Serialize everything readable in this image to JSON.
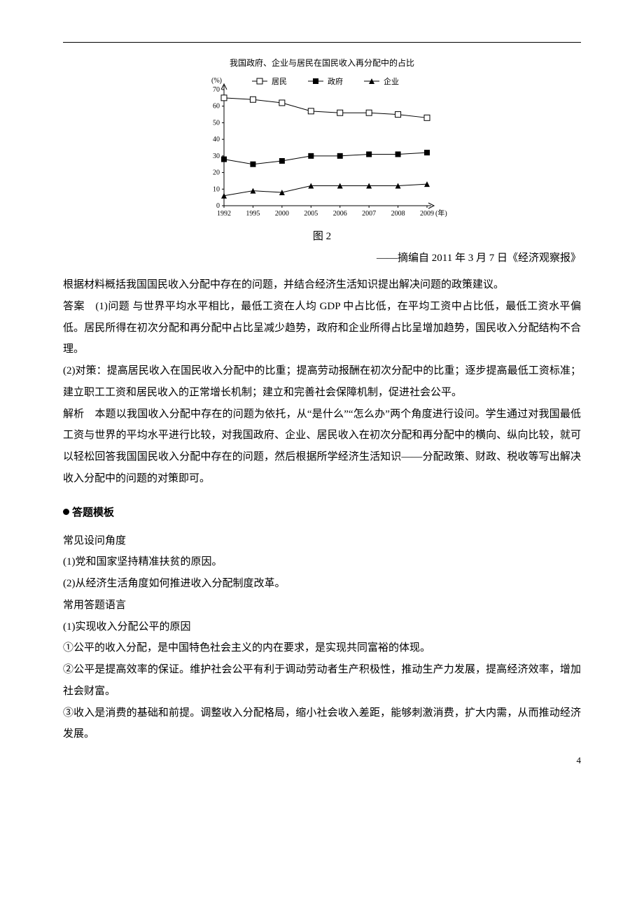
{
  "chart": {
    "title": "我国政府、企业与居民在国民收入再分配中的占比",
    "caption": "图 2",
    "y_unit": "(%)",
    "x_unit": "(年)",
    "xlim": [
      1992,
      2009
    ],
    "ylim": [
      0,
      70
    ],
    "ytick_step": 10,
    "y_ticks": [
      0,
      10,
      20,
      30,
      40,
      50,
      60,
      70
    ],
    "x_labels": [
      "1992",
      "1995",
      "2000",
      "2005",
      "2006",
      "2007",
      "2008",
      "2009"
    ],
    "background_color": "#ffffff",
    "axis_color": "#000000",
    "series": [
      {
        "name": "居民",
        "marker": "square-open",
        "color": "#000000",
        "values": [
          65,
          64,
          62,
          57,
          56,
          56,
          55,
          53
        ]
      },
      {
        "name": "政府",
        "marker": "square-filled",
        "color": "#000000",
        "values": [
          28,
          25,
          27,
          30,
          30,
          31,
          31,
          32
        ]
      },
      {
        "name": "企业",
        "marker": "triangle-filled",
        "color": "#000000",
        "values": [
          6,
          9,
          8,
          12,
          12,
          12,
          12,
          13
        ]
      }
    ],
    "legend": [
      "居民",
      "政府",
      "企业"
    ],
    "axis_fontsize": 10,
    "line_width": 1
  },
  "source": "——摘编自 2011 年 3 月 7 日《经济观察报》",
  "body": {
    "p1": "根据材料概括我国国民收入分配中存在的问题，并结合经济生活知识提出解决问题的政策建议。",
    "p2": "答案　(1)问题 与世界平均水平相比，最低工资在人均 GDP 中占比低，在平均工资中占比低，最低工资水平偏低。居民所得在初次分配和再分配中占比呈减少趋势，政府和企业所得占比呈增加趋势，国民收入分配结构不合理。",
    "p3": "(2)对策：提高居民收入在国民收入分配中的比重；提高劳动报酬在初次分配中的比重；逐步提高最低工资标准；建立职工工资和居民收入的正常增长机制；建立和完善社会保障机制，促进社会公平。",
    "p4": "解析　本题以我国收入分配中存在的问题为依托，从“是什么”“怎么办”两个角度进行设问。学生通过对我国最低工资与世界的平均水平进行比较，对我国政府、企业、居民收入在初次分配和再分配中的横向、纵向比较，就可以轻松回答我国国民收入分配中存在的问题，然后根据所学经济生活知识——分配政策、财政、税收等写出解决收入分配中的问题的对策即可。"
  },
  "template": {
    "heading": "答题模板",
    "t1": "常见设问角度",
    "t2": "(1)党和国家坚持精准扶贫的原因。",
    "t3": "(2)从经济生活角度如何推进收入分配制度改革。",
    "t4": "常用答题语言",
    "t5": "(1)实现收入分配公平的原因",
    "t6": "①公平的收入分配，是中国特色社会主义的内在要求，是实现共同富裕的体现。",
    "t7": "②公平是提高效率的保证。维护社会公平有利于调动劳动者生产积极性，推动生产力发展，提高经济效率，增加社会财富。",
    "t8": "③收入是消费的基础和前提。调整收入分配格局，缩小社会收入差距，能够刺激消费，扩大内需，从而推动经济发展。"
  },
  "page_number": "4"
}
